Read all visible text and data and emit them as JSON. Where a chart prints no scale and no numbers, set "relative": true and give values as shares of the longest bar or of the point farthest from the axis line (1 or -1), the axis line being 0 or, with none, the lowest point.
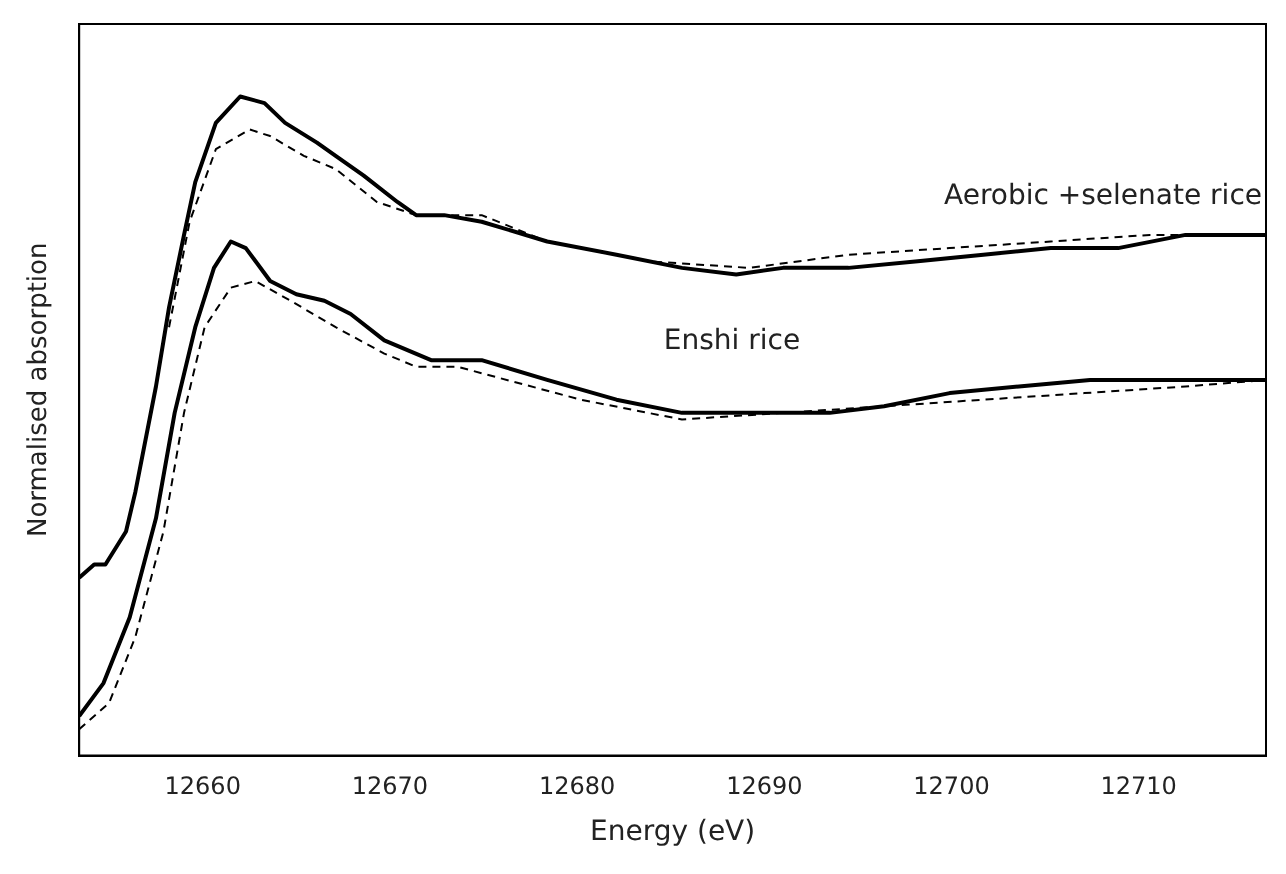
{
  "chart_data": {
    "type": "line",
    "relative": true,
    "xlabel": "Energy (eV)",
    "ylabel": "Normalised absorption",
    "xlim": [
      12653.4,
      12716.8
    ],
    "xticks": [
      12660,
      12670,
      12680,
      12690,
      12700,
      12710
    ],
    "tick_labels": "x",
    "legend": false,
    "grid": false,
    "marker": "none",
    "series": [
      {
        "name": "Aerobic +selenate rice",
        "color": "#000000",
        "line_style": "solid",
        "x": [
          12653.4,
          12654.2,
          12654.8,
          12655.9,
          12656.4,
          12657.5,
          12658.2,
          12659.0,
          12659.6,
          12660.7,
          12662.0,
          12663.3,
          12664.4,
          12666.1,
          12667.1,
          12668.6,
          12670.4,
          12671.4,
          12672.9,
          12674.9,
          12678.4,
          12682.1,
          12685.6,
          12688.5,
          12691.0,
          12694.5,
          12698.2,
          12701.7,
          12705.3,
          12708.9,
          12712.5,
          12716.8
        ],
        "values": [
          0.27,
          0.29,
          0.29,
          0.34,
          0.4,
          0.56,
          0.68,
          0.79,
          0.87,
          0.96,
          1.0,
          0.99,
          0.96,
          0.93,
          0.91,
          0.88,
          0.84,
          0.82,
          0.82,
          0.81,
          0.78,
          0.76,
          0.74,
          0.73,
          0.74,
          0.74,
          0.75,
          0.76,
          0.77,
          0.77,
          0.79,
          0.79
        ]
      },
      {
        "color": "#000000",
        "line_style": "dashed",
        "x": [
          12658.2,
          12659.3,
          12660.7,
          12662.5,
          12663.6,
          12665.4,
          12667.1,
          12669.3,
          12671.4,
          12674.9,
          12678.4,
          12683.8,
          12689.2,
          12694.5,
          12699.9,
          12705.3,
          12710.6,
          12716.8
        ],
        "values": [
          0.65,
          0.81,
          0.92,
          0.95,
          0.94,
          0.91,
          0.89,
          0.84,
          0.82,
          0.82,
          0.78,
          0.75,
          0.74,
          0.76,
          0.77,
          0.78,
          0.79,
          0.79
        ]
      },
      {
        "name": "Enshi rice",
        "color": "#000000",
        "line_style": "solid",
        "x": [
          12653.4,
          12654.7,
          12656.1,
          12657.5,
          12658.5,
          12659.6,
          12660.6,
          12661.5,
          12662.3,
          12663.6,
          12665.0,
          12666.5,
          12667.9,
          12669.7,
          12672.2,
          12674.9,
          12678.4,
          12682.1,
          12685.6,
          12689.2,
          12693.5,
          12696.4,
          12699.9,
          12703.6,
          12707.4,
          12708.9,
          12712.5,
          12716.8
        ],
        "values": [
          0.06,
          0.11,
          0.21,
          0.36,
          0.52,
          0.65,
          0.74,
          0.78,
          0.77,
          0.72,
          0.7,
          0.69,
          0.67,
          0.63,
          0.6,
          0.6,
          0.57,
          0.54,
          0.52,
          0.52,
          0.52,
          0.53,
          0.55,
          0.56,
          0.57,
          0.57,
          0.57,
          0.57
        ]
      },
      {
        "color": "#000000",
        "line_style": "dashed",
        "x": [
          12653.4,
          12655.0,
          12656.4,
          12657.9,
          12659.0,
          12660.1,
          12661.5,
          12662.8,
          12664.7,
          12667.1,
          12669.7,
          12671.4,
          12673.6,
          12680.2,
          12685.6,
          12691.0,
          12696.4,
          12701.7,
          12707.1,
          12712.5,
          12716.8
        ],
        "values": [
          0.04,
          0.08,
          0.18,
          0.34,
          0.52,
          0.65,
          0.71,
          0.72,
          0.69,
          0.65,
          0.61,
          0.59,
          0.59,
          0.54,
          0.51,
          0.52,
          0.53,
          0.54,
          0.55,
          0.56,
          0.57
        ]
      }
    ]
  }
}
